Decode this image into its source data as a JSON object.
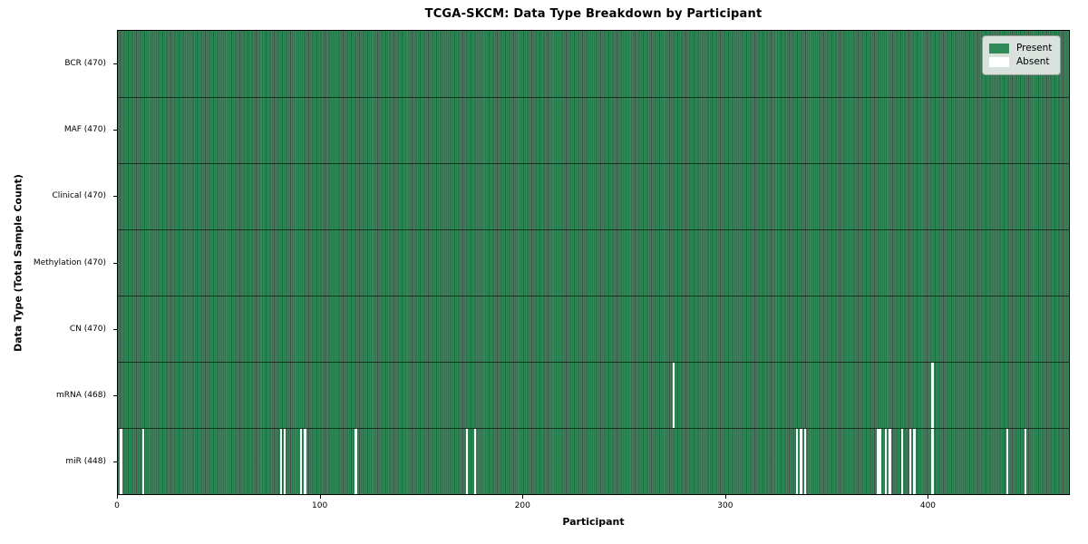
{
  "colors": {
    "present": "#2f8c58",
    "absent": "#ffffff",
    "cell_edge": "#092817",
    "spine": "#000000",
    "legend_bg": "#ececec",
    "legend_border": "#9c9c9c"
  },
  "chart_data": {
    "type": "heatmap",
    "title": "TCGA-SKCM: Data Type Breakdown by Participant",
    "xlabel": "Participant",
    "ylabel": "Data Type (Total Sample Count)",
    "n_participants": 470,
    "x_ticks": [
      0,
      100,
      200,
      300,
      400
    ],
    "grid": false,
    "legend_position": "upper right",
    "legend": [
      {
        "label": "Present",
        "color": "#2f8c58"
      },
      {
        "label": "Absent",
        "color": "#ffffff"
      }
    ],
    "rows": [
      {
        "data_type": "BCR",
        "label": "BCR (470)",
        "present_count": 470,
        "absent_participants": []
      },
      {
        "data_type": "MAF",
        "label": "MAF (470)",
        "present_count": 470,
        "absent_participants": []
      },
      {
        "data_type": "Clinical",
        "label": "Clinical (470)",
        "present_count": 470,
        "absent_participants": []
      },
      {
        "data_type": "Methylation",
        "label": "Methylation (470)",
        "present_count": 470,
        "absent_participants": []
      },
      {
        "data_type": "CN",
        "label": "CN (470)",
        "present_count": 470,
        "absent_participants": []
      },
      {
        "data_type": "mRNA",
        "label": "mRNA (468)",
        "present_count": 468,
        "absent_participants": [
          274,
          402
        ]
      },
      {
        "data_type": "miR",
        "label": "miR (448)",
        "present_count": 448,
        "absent_participants": [
          1,
          12,
          80,
          82,
          90,
          92,
          117,
          172,
          176,
          335,
          337,
          339,
          375,
          376,
          379,
          381,
          387,
          391,
          393,
          402,
          439,
          448
        ]
      }
    ]
  }
}
